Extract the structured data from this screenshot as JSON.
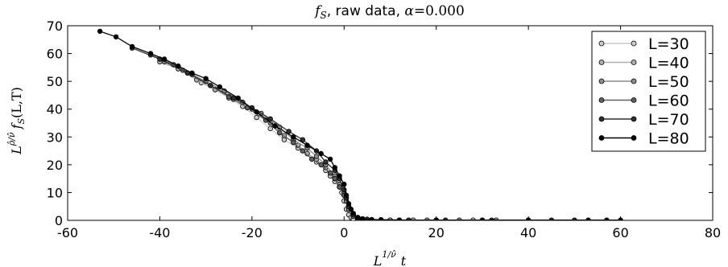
{
  "chart_data": {
    "type": "line",
    "title": "f_S, raw data, α=0.000",
    "title_parts": {
      "symbol_f": "f",
      "symbol_sub": "S",
      "text": ", raw data, ",
      "alpha": "α",
      "equals": "=0.000"
    },
    "xlabel": "L^(1/ν̂) t",
    "xlabel_parts": {
      "base": "L",
      "sup": "1/ν̂",
      "var": "t"
    },
    "ylabel": "L^(ρ̂/ν̂) f_S(L,T)",
    "ylabel_parts": {
      "base": "L",
      "sup": "ρ̂/ν̂",
      "func": "f",
      "sub": "S",
      "args": "(L,T)"
    },
    "xlim": [
      -60,
      80
    ],
    "ylim": [
      0,
      70
    ],
    "x_ticks": [
      -60,
      -40,
      -20,
      0,
      20,
      40,
      60,
      80
    ],
    "x_tick_labels": [
      "-60",
      "-40",
      "-20",
      "0",
      "20",
      "40",
      "60",
      "80"
    ],
    "y_ticks": [
      0,
      10,
      20,
      30,
      40,
      50,
      60,
      70
    ],
    "y_tick_labels": [
      "0",
      "10",
      "20",
      "30",
      "40",
      "50",
      "60",
      "70"
    ],
    "grid": false,
    "legend_position": "top-right",
    "series": [
      {
        "name": "L=30",
        "color": "#cccccc",
        "x": [
          -31,
          -28,
          -25,
          -22,
          -19,
          -16,
          -13,
          -10,
          -8,
          -6,
          -4,
          -3,
          -2,
          -1,
          -0.5,
          0,
          0.5,
          1,
          1.5,
          2,
          3,
          4,
          6,
          10,
          15
        ],
        "y": [
          49.5,
          47,
          44,
          41,
          37,
          33,
          29,
          26,
          24,
          21,
          18,
          16,
          14,
          12,
          10,
          7,
          4,
          2,
          1,
          0.5,
          0.3,
          0.2,
          0.1,
          0.1,
          0.1
        ]
      },
      {
        "name": "L=40",
        "color": "#b0b0b0",
        "x": [
          -40,
          -36,
          -32,
          -28,
          -24,
          -20,
          -16,
          -13,
          -10,
          -8,
          -6,
          -4,
          -2,
          -1,
          0,
          1,
          2,
          3,
          4,
          6,
          10,
          15,
          20,
          28
        ],
        "y": [
          57,
          54.5,
          50.5,
          47,
          43.5,
          40,
          35,
          30.5,
          27,
          24,
          22,
          19,
          15,
          12,
          9,
          4,
          1.5,
          0.6,
          0.3,
          0.2,
          0.1,
          0.1,
          0.1,
          0.1
        ]
      },
      {
        "name": "L=50",
        "color": "#8c8c8c",
        "x": [
          -39,
          -35,
          -30,
          -26,
          -22,
          -18,
          -14,
          -11,
          -8,
          -6,
          -4,
          -2,
          -1,
          0,
          0.5,
          1,
          2,
          3,
          5,
          8,
          12,
          18,
          25,
          33
        ],
        "y": [
          57,
          54,
          50,
          46.5,
          42.5,
          38.5,
          33.5,
          29,
          26,
          23,
          20,
          16,
          13,
          10,
          7,
          4,
          1.5,
          0.6,
          0.3,
          0.2,
          0.1,
          0.1,
          0.1,
          0.1
        ]
      },
      {
        "name": "L=60",
        "color": "#606060",
        "x": [
          -42,
          -37,
          -33,
          -29,
          -25,
          -21,
          -17,
          -14,
          -11,
          -9,
          -7,
          -5,
          -3,
          -2,
          -1,
          0,
          1,
          2,
          3,
          5,
          8,
          12,
          20,
          30,
          40
        ],
        "y": [
          59.5,
          56,
          52.5,
          48.5,
          44.5,
          40.5,
          36,
          31.5,
          28,
          25,
          22,
          20,
          17,
          15,
          12,
          9,
          5,
          2,
          1,
          0.4,
          0.2,
          0.1,
          0.1,
          0.1,
          0.1
        ]
      },
      {
        "name": "L=70",
        "color": "#303030",
        "x": [
          -46,
          -40,
          -34,
          -29,
          -24,
          -20,
          -16,
          -12,
          -9,
          -6,
          -4,
          -2,
          -1,
          0,
          0.5,
          1,
          2,
          3,
          5,
          8,
          14,
          22,
          32,
          45,
          50
        ],
        "y": [
          62,
          58,
          53,
          48.5,
          44,
          40.5,
          36.5,
          32,
          29,
          25,
          21,
          18,
          15,
          11,
          8,
          5,
          2.5,
          1,
          0.4,
          0.2,
          0.1,
          0.1,
          0.1,
          0.1,
          0.1
        ]
      },
      {
        "name": "L=80",
        "color": "#000000",
        "x": [
          -53,
          -49.5,
          -46,
          -42,
          -39,
          -36,
          -33,
          -30,
          -27,
          -23,
          -19,
          -15,
          -11,
          -8,
          -5,
          -3,
          -2,
          -1,
          0,
          0.5,
          1,
          1.5,
          2,
          3,
          4,
          6,
          8,
          12,
          20,
          30,
          40,
          53,
          57,
          60
        ],
        "y": [
          68,
          66,
          62.5,
          60,
          58,
          55.5,
          53,
          51,
          48,
          44,
          39,
          34,
          30,
          27,
          24,
          22,
          19,
          16,
          13,
          9,
          6,
          4,
          2.5,
          1,
          0.6,
          0.3,
          0.2,
          0.1,
          0.1,
          0.1,
          0.1,
          0.1,
          0.1,
          0.1
        ]
      }
    ]
  }
}
